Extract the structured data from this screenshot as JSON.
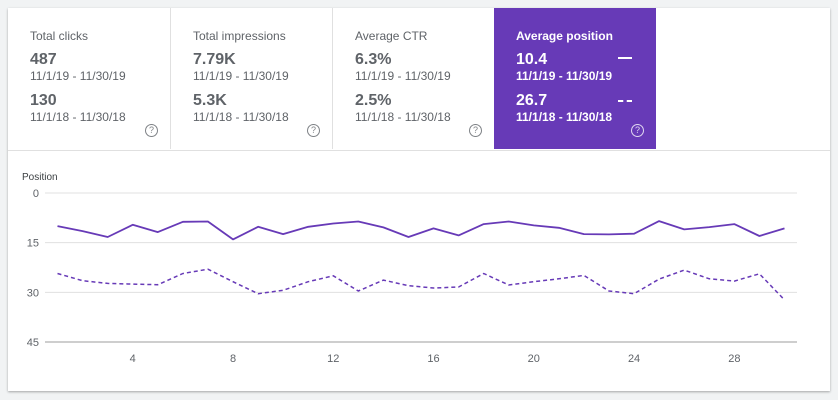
{
  "metrics": [
    {
      "label": "Total clicks",
      "current_value": "487",
      "current_range": "11/1/19 - 11/30/19",
      "previous_value": "130",
      "previous_range": "11/1/18 - 11/30/18",
      "help_icon": "help-circle-icon",
      "selected": false
    },
    {
      "label": "Total impressions",
      "current_value": "7.79K",
      "current_range": "11/1/19 - 11/30/19",
      "previous_value": "5.3K",
      "previous_range": "11/1/18 - 11/30/18",
      "help_icon": "help-circle-icon",
      "selected": false
    },
    {
      "label": "Average CTR",
      "current_value": "6.3%",
      "current_range": "11/1/19 - 11/30/19",
      "previous_value": "2.5%",
      "previous_range": "11/1/18 - 11/30/18",
      "help_icon": "help-circle-icon",
      "selected": false
    },
    {
      "label": "Average position",
      "current_value": "10.4",
      "current_range": "11/1/19 - 11/30/19",
      "previous_value": "26.7",
      "previous_range": "11/1/18 - 11/30/18",
      "help_icon": "help-circle-icon",
      "selected": true
    }
  ],
  "colors": {
    "accent": "#673ab7",
    "line": "#673ab7",
    "grid": "#e0e0e0",
    "text_secondary": "#5f6368"
  },
  "chart_data": {
    "type": "line",
    "ylabel": "Position",
    "y_inverted": true,
    "ylim": [
      0,
      45
    ],
    "yticks": [
      0,
      15,
      30,
      45
    ],
    "xticks": [
      4,
      8,
      12,
      16,
      20,
      24,
      28
    ],
    "xlim": [
      0.5,
      30.5
    ],
    "x": [
      1,
      2,
      3,
      4,
      5,
      6,
      7,
      8,
      9,
      10,
      11,
      12,
      13,
      14,
      15,
      16,
      17,
      18,
      19,
      20,
      21,
      22,
      23,
      24,
      25,
      26,
      27,
      28,
      29,
      30
    ],
    "series": [
      {
        "style": "solid",
        "values": [
          10.0,
          11.5,
          13.3,
          9.6,
          11.8,
          8.7,
          8.6,
          14.0,
          10.2,
          12.4,
          10.2,
          9.2,
          8.6,
          10.4,
          13.3,
          10.7,
          12.8,
          9.4,
          8.6,
          9.8,
          10.5,
          12.4,
          12.5,
          12.3,
          8.5,
          11.0,
          10.3,
          9.4,
          13.0,
          10.7
        ]
      },
      {
        "style": "dashed",
        "values": [
          24.3,
          26.5,
          27.3,
          27.5,
          27.7,
          24.3,
          23.0,
          26.8,
          30.4,
          29.4,
          26.8,
          25.0,
          29.6,
          26.3,
          28.0,
          28.7,
          28.4,
          24.3,
          27.8,
          26.8,
          25.9,
          24.9,
          29.6,
          30.4,
          26.0,
          23.3,
          25.9,
          26.6,
          24.4,
          32.3
        ]
      }
    ]
  }
}
